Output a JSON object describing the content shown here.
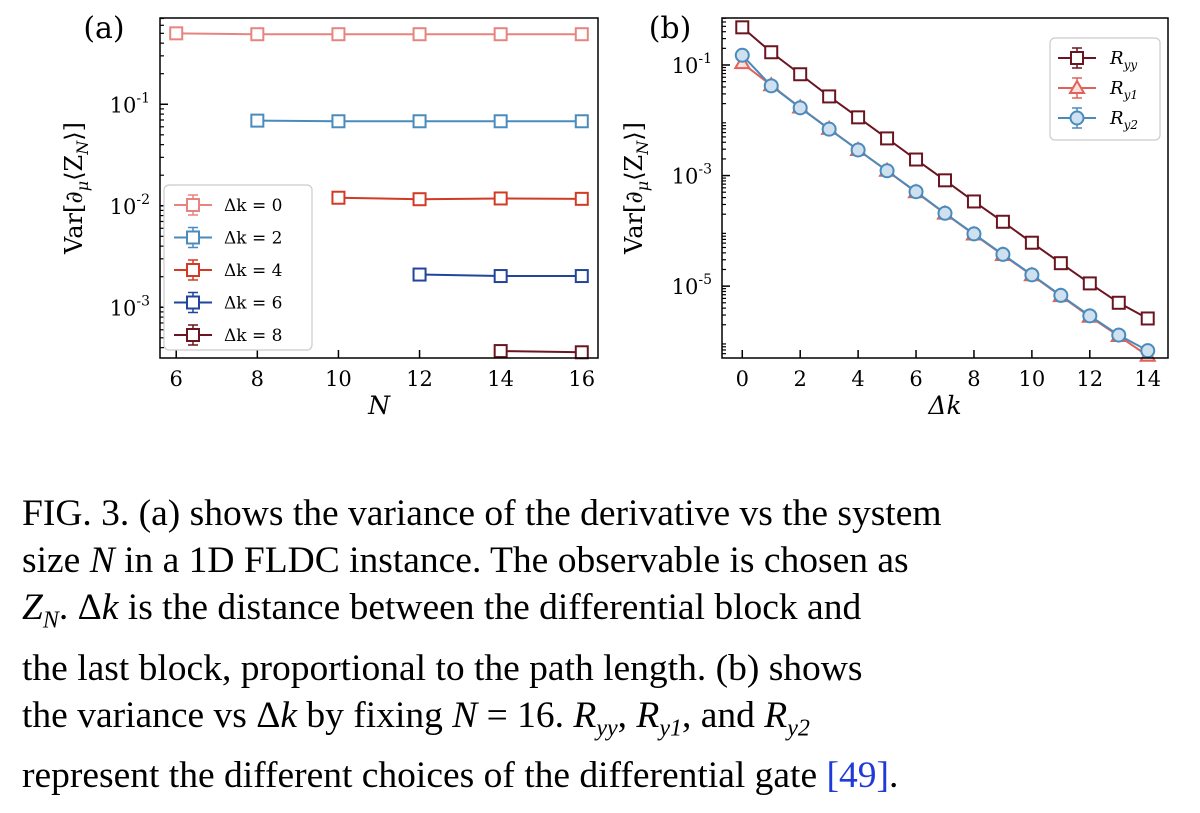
{
  "chart_data": [
    {
      "panel_label": "(a)",
      "type": "line",
      "xlabel": "N",
      "ylabel": "Var[∂μ⟨ZN⟩]",
      "ylabel_parts": [
        "Var[∂",
        "μ",
        "⟨Z",
        "N",
        "⟩]"
      ],
      "yscale": "log",
      "xlim": [
        5.6,
        16.4
      ],
      "ylim_log10": [
        -3.5,
        -0.15
      ],
      "xticks": [
        6,
        8,
        10,
        12,
        14,
        16
      ],
      "yticks": [
        {
          "exp": -1,
          "base": "10",
          "sup": "-1"
        },
        {
          "exp": -2,
          "base": "10",
          "sup": "-2"
        },
        {
          "exp": -3,
          "base": "10",
          "sup": "-3"
        }
      ],
      "legend_location": "lower-left",
      "series": [
        {
          "name": "Δk = 0",
          "color": "#e8847f",
          "marker": "square",
          "x": [
            6,
            8,
            10,
            12,
            14,
            16
          ],
          "y": [
            0.5,
            0.49,
            0.49,
            0.49,
            0.49,
            0.49
          ]
        },
        {
          "name": "Δk = 2",
          "color": "#4a8bbd",
          "marker": "square",
          "x": [
            8,
            10,
            12,
            14,
            16
          ],
          "y": [
            0.069,
            0.068,
            0.068,
            0.068,
            0.068
          ]
        },
        {
          "name": "Δk = 4",
          "color": "#d23a24",
          "marker": "square",
          "x": [
            10,
            12,
            14,
            16
          ],
          "y": [
            0.012,
            0.0116,
            0.0118,
            0.0117
          ]
        },
        {
          "name": "Δk = 6",
          "color": "#22449a",
          "marker": "square",
          "x": [
            12,
            14,
            16
          ],
          "y": [
            0.0021,
            0.00203,
            0.00203
          ]
        },
        {
          "name": "Δk = 8",
          "color": "#6b1520",
          "marker": "square",
          "x": [
            14,
            16
          ],
          "y": [
            0.00037,
            0.00036
          ]
        }
      ]
    },
    {
      "panel_label": "(b)",
      "type": "line",
      "xlabel": "Δk",
      "ylabel": "Var[∂μ⟨ZN⟩]",
      "ylabel_parts": [
        "Var[∂",
        "μ",
        "⟨Z",
        "N",
        "⟩]"
      ],
      "yscale": "log",
      "xlim": [
        -0.7,
        14.7
      ],
      "ylim_log10": [
        -6.3,
        -0.15
      ],
      "xticks": [
        0,
        2,
        4,
        6,
        8,
        10,
        12,
        14
      ],
      "yticks": [
        {
          "exp": -1,
          "base": "10",
          "sup": "-1"
        },
        {
          "exp": -3,
          "base": "10",
          "sup": "-3"
        },
        {
          "exp": -5,
          "base": "10",
          "sup": "-5"
        }
      ],
      "legend_location": "upper-right",
      "series": [
        {
          "name": "Ryy",
          "name_base": "R",
          "name_sub": "yy",
          "color": "#6b1520",
          "marker": "square",
          "x": [
            0,
            1,
            2,
            3,
            4,
            5,
            6,
            7,
            8,
            9,
            10,
            11,
            12,
            13,
            14
          ],
          "y": [
            0.48,
            0.17,
            0.068,
            0.027,
            0.0113,
            0.0047,
            0.00195,
            0.00082,
            0.00034,
            0.000146,
            6.1e-05,
            2.6e-05,
            1.12e-05,
            5e-06,
            2.6e-06
          ]
        },
        {
          "name": "Ry1",
          "name_base": "R",
          "name_sub": "y1",
          "color": "#e0625a",
          "marker": "triangle",
          "x": [
            0,
            1,
            2,
            3,
            4,
            5,
            6,
            7,
            8,
            9,
            10,
            11,
            12,
            13,
            14
          ],
          "y": [
            0.108,
            0.043,
            0.017,
            0.007,
            0.0029,
            0.00122,
            0.0005,
            0.000205,
            8.6e-05,
            3.65e-05,
            1.57e-05,
            6.6e-06,
            2.8e-06,
            1.25e-06,
            5.5e-07
          ]
        },
        {
          "name": "Ry2",
          "name_base": "R",
          "name_sub": "y2",
          "color": "#4a8bbd",
          "marker": "circle",
          "x": [
            0,
            1,
            2,
            3,
            4,
            5,
            6,
            7,
            8,
            9,
            10,
            11,
            12,
            13,
            14
          ],
          "y": [
            0.15,
            0.042,
            0.0168,
            0.0069,
            0.0029,
            0.00122,
            0.00051,
            0.000208,
            8.8e-05,
            3.75e-05,
            1.6e-05,
            6.8e-06,
            2.9e-06,
            1.3e-06,
            6.8e-07
          ]
        }
      ]
    }
  ],
  "caption": {
    "lines": [
      [
        "FIG. 3.  (a) shows the variance of the derivative vs the system"
      ],
      [
        "size ",
        {
          "it": "N"
        },
        " in a 1D FLDC instance.  The observable is chosen as"
      ],
      [
        {
          "it": "Z"
        },
        {
          "sub": "N"
        },
        ".  Δ",
        {
          "it": "k"
        },
        " is the distance between the differential block and"
      ],
      [
        "the last block, proportional to the path length.  (b) shows"
      ],
      [
        "the variance vs Δ",
        {
          "it": "k"
        },
        " by fixing ",
        {
          "it": "N"
        },
        " = 16.  ",
        {
          "it": "R"
        },
        {
          "sub": "yy"
        },
        ", ",
        {
          "it": "R"
        },
        {
          "sub": "y1"
        },
        ", and ",
        {
          "it": "R"
        },
        {
          "sub": "y2"
        }
      ],
      [
        "represent the different choices of the differential gate ",
        {
          "ref": "[49]"
        },
        "."
      ]
    ]
  }
}
